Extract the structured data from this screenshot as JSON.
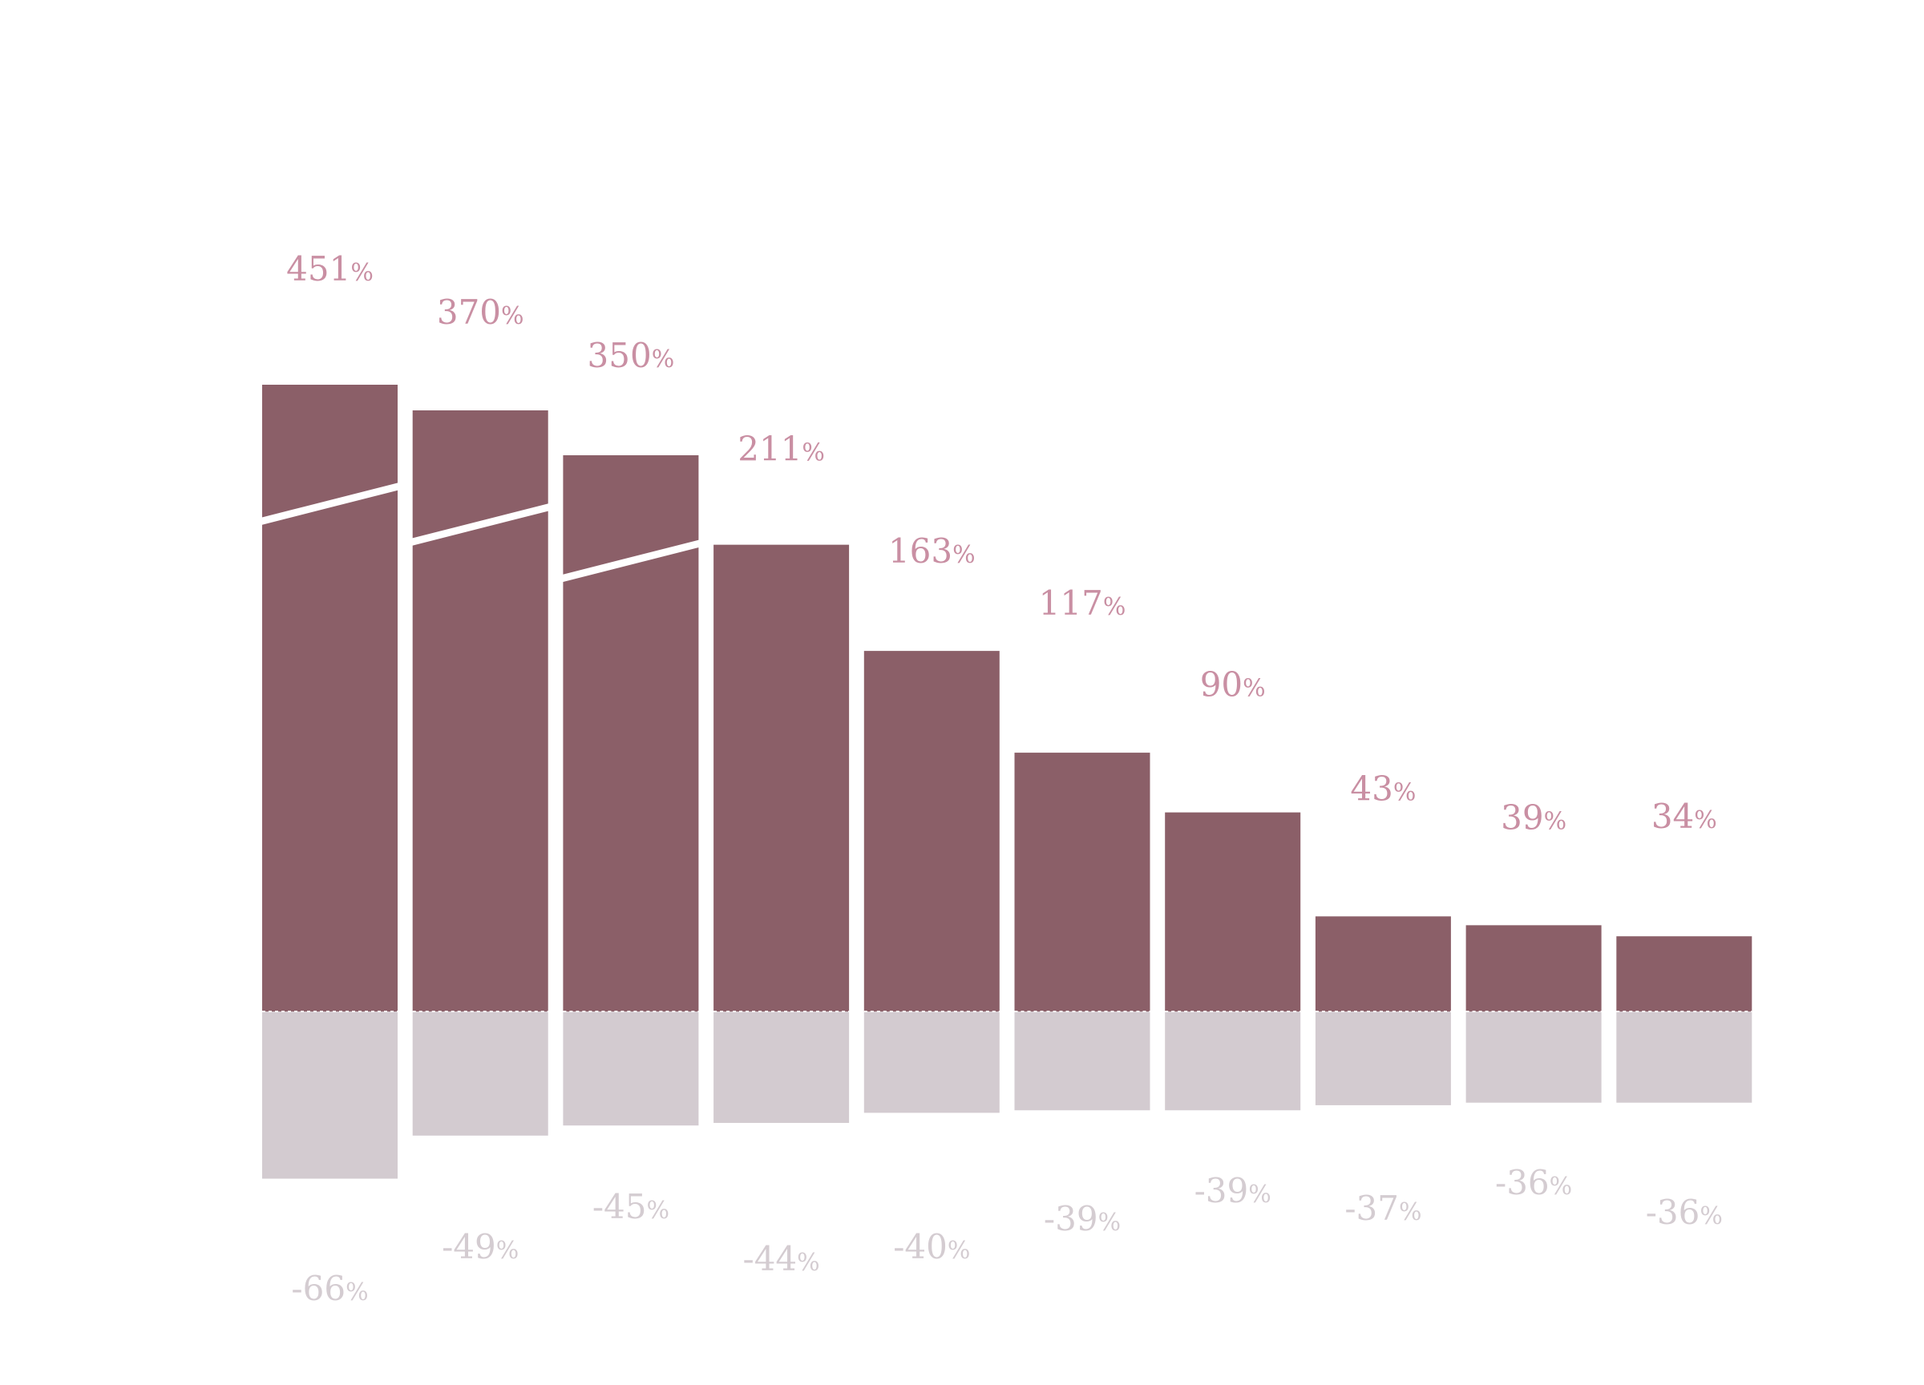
{
  "chart_data": {
    "type": "bar",
    "categories": [
      "",
      "",
      "",
      "",
      "",
      "",
      "",
      "",
      "",
      ""
    ],
    "series": [
      {
        "values": [
          451,
          370,
          350,
          211,
          163,
          117,
          90,
          43,
          39,
          34
        ],
        "color": "#8b5f68",
        "label_color": "#c98fa3",
        "truncated": [
          true,
          true,
          true,
          false,
          false,
          false,
          false,
          false,
          false,
          false
        ]
      },
      {
        "values": [
          -66,
          -49,
          -45,
          -44,
          -40,
          -39,
          -39,
          -37,
          -36,
          -36
        ],
        "color": "#d3cbd0",
        "label_color": "#d4ccd1"
      }
    ],
    "labels": {
      "positive": [
        "451",
        "370",
        "350",
        "211",
        "163",
        "117",
        "90",
        "43",
        "39",
        "34"
      ],
      "negative": [
        "-66",
        "-49",
        "-45",
        "-44",
        "-40",
        "-39",
        "-39",
        "-37",
        "-36",
        "-36"
      ],
      "unit": "%"
    },
    "title": "",
    "xlabel": "",
    "ylabel": "",
    "grid": false,
    "baseline": "dashed"
  }
}
